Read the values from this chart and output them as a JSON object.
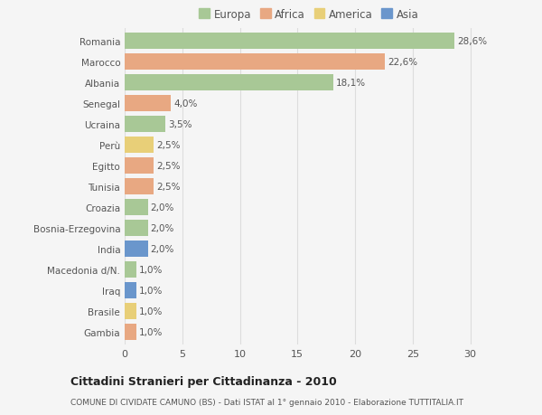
{
  "categories": [
    "Romania",
    "Marocco",
    "Albania",
    "Senegal",
    "Ucraina",
    "Perù",
    "Egitto",
    "Tunisia",
    "Croazia",
    "Bosnia-Erzegovina",
    "India",
    "Macedonia d/N.",
    "Iraq",
    "Brasile",
    "Gambia"
  ],
  "values": [
    28.6,
    22.6,
    18.1,
    4.0,
    3.5,
    2.5,
    2.5,
    2.5,
    2.0,
    2.0,
    2.0,
    1.0,
    1.0,
    1.0,
    1.0
  ],
  "labels": [
    "28,6%",
    "22,6%",
    "18,1%",
    "4,0%",
    "3,5%",
    "2,5%",
    "2,5%",
    "2,5%",
    "2,0%",
    "2,0%",
    "2,0%",
    "1,0%",
    "1,0%",
    "1,0%",
    "1,0%"
  ],
  "continents": [
    "Europa",
    "Africa",
    "Europa",
    "Africa",
    "Europa",
    "America",
    "Africa",
    "Africa",
    "Europa",
    "Europa",
    "Asia",
    "Europa",
    "Asia",
    "America",
    "Africa"
  ],
  "continent_colors": {
    "Europa": "#a8c896",
    "Africa": "#e8a882",
    "America": "#e8cf78",
    "Asia": "#6a96cc"
  },
  "legend_items": [
    "Europa",
    "Africa",
    "America",
    "Asia"
  ],
  "xlim": [
    0,
    32
  ],
  "xticks": [
    0,
    5,
    10,
    15,
    20,
    25,
    30
  ],
  "title": "Cittadini Stranieri per Cittadinanza - 2010",
  "subtitle": "COMUNE DI CIVIDATE CAMUNO (BS) - Dati ISTAT al 1° gennaio 2010 - Elaborazione TUTTITALIA.IT",
  "background_color": "#f5f5f5",
  "bar_height": 0.75,
  "grid_color": "#dddddd",
  "text_color": "#555555",
  "label_fontsize": 7.5,
  "ytick_fontsize": 7.5,
  "xtick_fontsize": 8.0
}
